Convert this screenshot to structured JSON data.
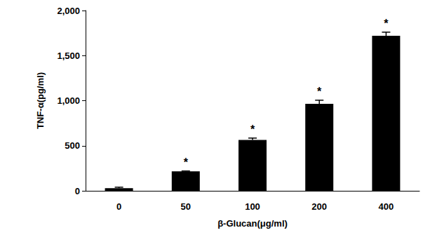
{
  "chart_data": {
    "type": "bar",
    "x_label": "β-Glucan(μg/ml)",
    "y_label": "TNF-α(pg/ml)",
    "categories": [
      "0",
      "50",
      "100",
      "200",
      "400"
    ],
    "values": [
      30,
      215,
      565,
      965,
      1720
    ],
    "errors": [
      10,
      5,
      20,
      40,
      40
    ],
    "annotations": [
      null,
      "*",
      "*",
      "*",
      "*"
    ],
    "color": "#000000",
    "ylim": [
      0,
      2000
    ],
    "yticks": [
      0,
      500,
      1000,
      1500,
      2000
    ],
    "grid": false
  }
}
